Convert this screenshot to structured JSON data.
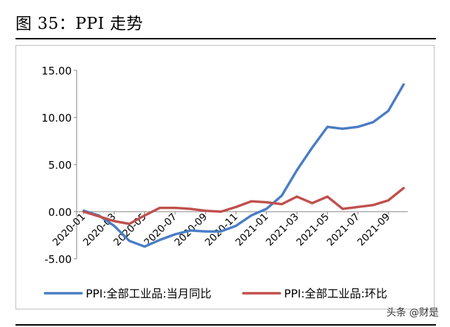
{
  "figure": {
    "title": "图 35：PPI 走势",
    "watermark": "头条 @财是"
  },
  "chart_data": {
    "type": "line",
    "x": [
      "2020-01",
      "2020-02",
      "2020-03",
      "2020-04",
      "2020-05",
      "2020-06",
      "2020-07",
      "2020-08",
      "2020-09",
      "2020-10",
      "2020-11",
      "2020-12",
      "2021-01",
      "2021-02",
      "2021-03",
      "2021-04",
      "2021-05",
      "2021-06",
      "2021-07",
      "2021-08",
      "2021-09",
      "2021-10"
    ],
    "x_tick_labels": [
      "2020-01",
      "2020-03",
      "2020-05",
      "2020-07",
      "2020-09",
      "2020-11",
      "2021-01",
      "2021-03",
      "2021-05",
      "2021-07",
      "2021-09"
    ],
    "y_tick_labels": [
      "15.00",
      "10.00",
      "5.00",
      "0.00",
      "-5.00"
    ],
    "y_ticks": [
      15,
      10,
      5,
      0,
      -5
    ],
    "ylim": [
      -5,
      15
    ],
    "grid": false,
    "legend_position": "bottom",
    "series": [
      {
        "name": "PPI:全部工业品:当月同比",
        "color": "#4a7dc4",
        "values": [
          0.1,
          -0.4,
          -1.5,
          -3.1,
          -3.7,
          -3.0,
          -2.4,
          -2.0,
          -2.1,
          -2.1,
          -1.5,
          -0.4,
          0.3,
          1.7,
          4.4,
          6.8,
          9.0,
          8.8,
          9.0,
          9.5,
          10.7,
          13.5
        ]
      },
      {
        "name": "PPI:全部工业品:环比",
        "color": "#c0504d",
        "values": [
          0.0,
          -0.5,
          -1.0,
          -1.3,
          -0.4,
          0.4,
          0.4,
          0.3,
          0.1,
          0.0,
          0.5,
          1.1,
          1.0,
          0.8,
          1.6,
          0.9,
          1.6,
          0.3,
          0.5,
          0.7,
          1.2,
          2.5
        ]
      }
    ]
  }
}
